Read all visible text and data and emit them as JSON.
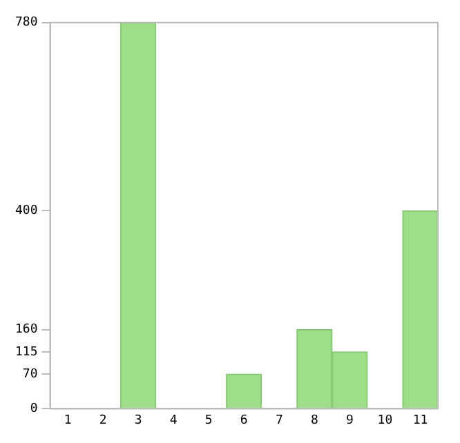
{
  "chart_data": {
    "type": "bar",
    "categories": [
      "1",
      "2",
      "3",
      "4",
      "5",
      "6",
      "7",
      "8",
      "9",
      "10",
      "11"
    ],
    "values": [
      0,
      0,
      780,
      0,
      0,
      70,
      0,
      160,
      115,
      0,
      400
    ],
    "color": "#9ede88",
    "ylim": [
      0,
      780
    ],
    "yticks": [
      0,
      70,
      115,
      160,
      400,
      780
    ],
    "grid": false,
    "legend": false
  }
}
